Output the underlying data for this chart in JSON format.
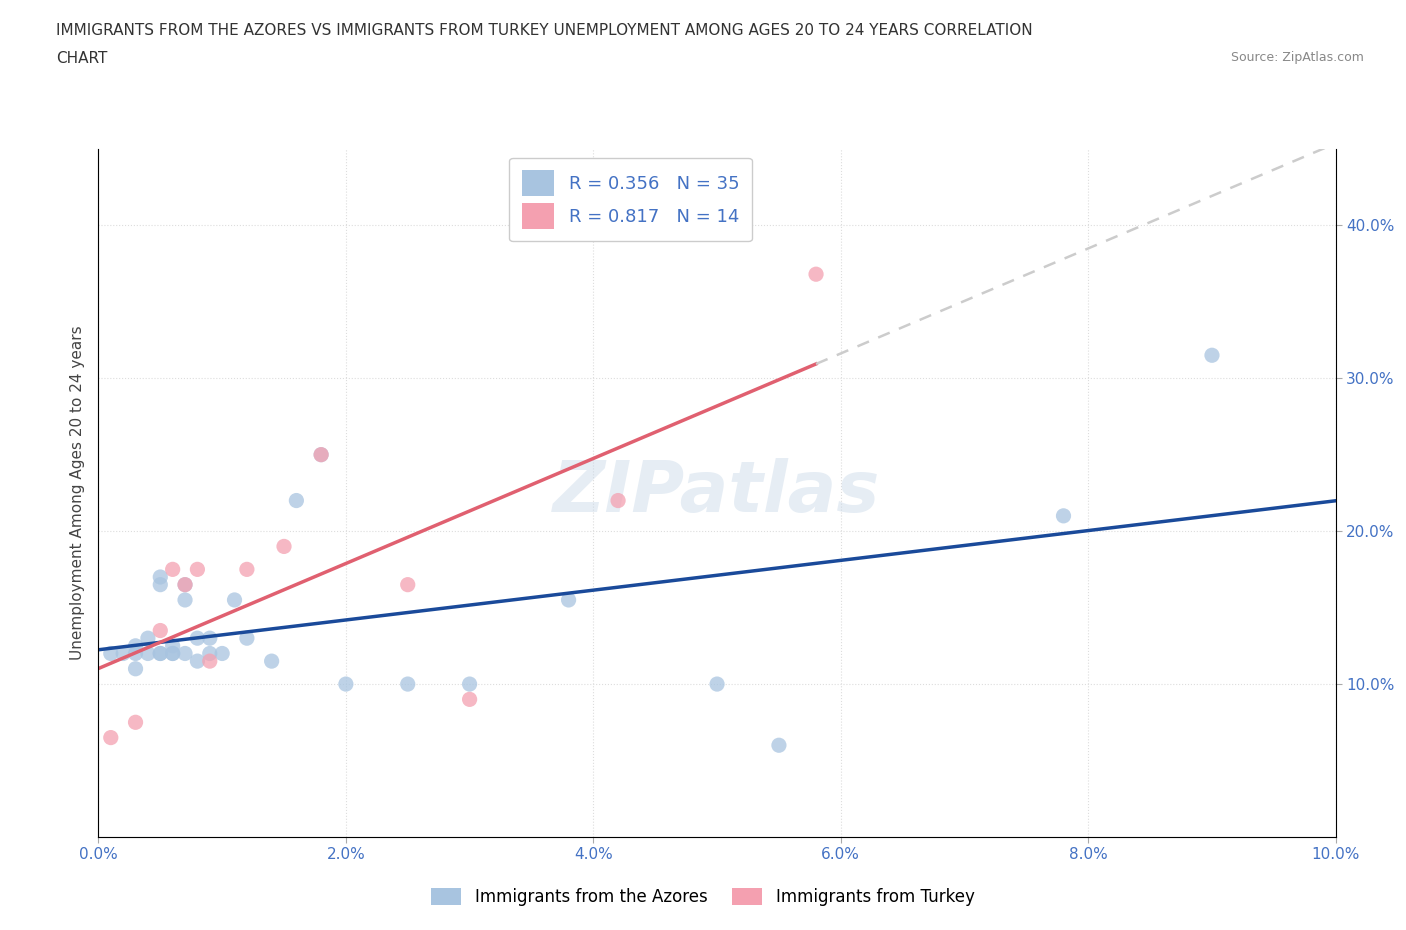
{
  "title_line1": "IMMIGRANTS FROM THE AZORES VS IMMIGRANTS FROM TURKEY UNEMPLOYMENT AMONG AGES 20 TO 24 YEARS CORRELATION",
  "title_line2": "CHART",
  "source_text": "Source: ZipAtlas.com",
  "ylabel": "Unemployment Among Ages 20 to 24 years",
  "xlim": [
    0.0,
    0.1
  ],
  "ylim": [
    0.0,
    0.45
  ],
  "xticks": [
    0.0,
    0.02,
    0.04,
    0.06,
    0.08,
    0.1
  ],
  "yticks": [
    0.1,
    0.2,
    0.3,
    0.4
  ],
  "azores_color": "#a8c4e0",
  "turkey_color": "#f4a0b0",
  "azores_line_color": "#1a4a9a",
  "turkey_line_color": "#e06070",
  "dashed_line_color": "#cccccc",
  "tick_color": "#4472c4",
  "legend_r_azores": "R = 0.356",
  "legend_n_azores": "N = 35",
  "legend_r_turkey": "R = 0.817",
  "legend_n_turkey": "N = 14",
  "watermark": "ZIPatlas",
  "background_color": "#ffffff",
  "grid_color": "#dddddd",
  "azores_x": [
    0.001,
    0.002,
    0.003,
    0.003,
    0.003,
    0.004,
    0.004,
    0.005,
    0.005,
    0.005,
    0.005,
    0.006,
    0.006,
    0.006,
    0.007,
    0.007,
    0.007,
    0.008,
    0.008,
    0.009,
    0.009,
    0.01,
    0.011,
    0.012,
    0.014,
    0.016,
    0.018,
    0.02,
    0.025,
    0.03,
    0.038,
    0.05,
    0.055,
    0.078,
    0.09
  ],
  "azores_y": [
    0.12,
    0.12,
    0.125,
    0.11,
    0.12,
    0.13,
    0.12,
    0.17,
    0.165,
    0.12,
    0.12,
    0.12,
    0.125,
    0.12,
    0.165,
    0.155,
    0.12,
    0.13,
    0.115,
    0.12,
    0.13,
    0.12,
    0.155,
    0.13,
    0.115,
    0.22,
    0.25,
    0.1,
    0.1,
    0.1,
    0.155,
    0.1,
    0.06,
    0.21,
    0.315
  ],
  "turkey_x": [
    0.001,
    0.003,
    0.005,
    0.006,
    0.007,
    0.008,
    0.009,
    0.012,
    0.015,
    0.018,
    0.025,
    0.03,
    0.042,
    0.058
  ],
  "turkey_y": [
    0.065,
    0.075,
    0.135,
    0.175,
    0.165,
    0.175,
    0.115,
    0.175,
    0.19,
    0.25,
    0.165,
    0.09,
    0.22,
    0.368
  ]
}
